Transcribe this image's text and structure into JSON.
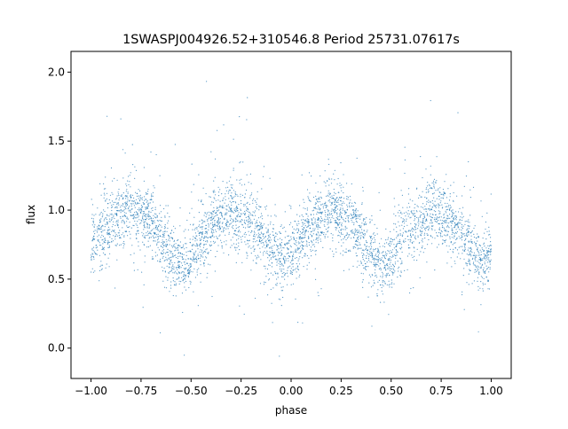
{
  "chart_data": {
    "type": "scatter",
    "title": "1SWASPJ004926.52+310546.8 Period 25731.07617s",
    "xlabel": "phase",
    "ylabel": "flux",
    "xlim": [
      -1.1,
      1.1
    ],
    "ylim": [
      -0.22,
      2.15
    ],
    "xticks": [
      -1.0,
      -0.75,
      -0.5,
      -0.25,
      0.0,
      0.25,
      0.5,
      0.75,
      1.0
    ],
    "xtick_labels": [
      "−1.00",
      "−0.75",
      "−0.50",
      "−0.25",
      "0.00",
      "0.25",
      "0.50",
      "0.75",
      "1.00"
    ],
    "yticks": [
      0.0,
      0.5,
      1.0,
      1.5,
      2.0
    ],
    "ytick_labels": [
      "0.0",
      "0.5",
      "1.0",
      "1.5",
      "2.0"
    ],
    "grid": false,
    "point_color": "#1f77b4",
    "light_curve": {
      "phase": [
        -1.0,
        -0.9,
        -0.8,
        -0.7,
        -0.6,
        -0.55,
        -0.5,
        -0.4,
        -0.3,
        -0.2,
        -0.1,
        -0.05,
        0.0,
        0.1,
        0.2,
        0.3,
        0.4,
        0.45,
        0.5,
        0.6,
        0.7,
        0.8,
        0.9,
        0.95,
        1.0
      ],
      "flux_median": [
        0.75,
        0.92,
        1.0,
        0.92,
        0.68,
        0.58,
        0.66,
        0.88,
        1.0,
        0.9,
        0.72,
        0.63,
        0.68,
        0.9,
        1.0,
        0.9,
        0.68,
        0.58,
        0.66,
        0.88,
        1.0,
        0.9,
        0.72,
        0.63,
        0.7
      ],
      "scatter_sigma": 0.12
    }
  }
}
